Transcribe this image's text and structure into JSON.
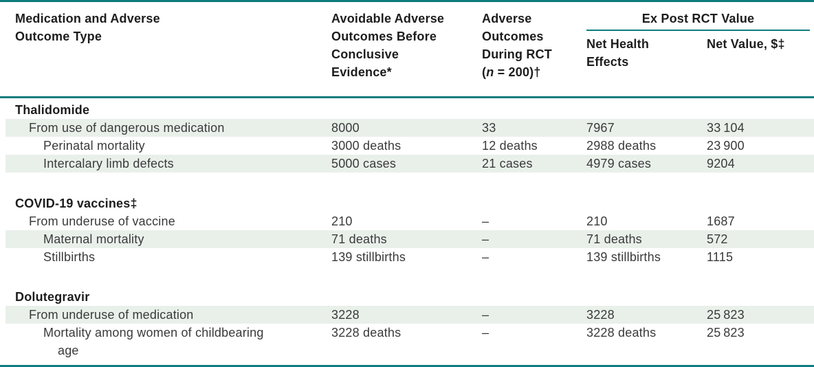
{
  "table": {
    "colors": {
      "teal": "#0e7c7c",
      "row_shade": "#e9f0ea"
    },
    "header": {
      "col_medication": "Medication and Adverse\nOutcome Type",
      "col_avoidable": "Avoidable Adverse\nOutcomes Before\nConclusive\nEvidence*",
      "col_rct_lines": "Adverse\nOutcomes\nDuring RCT",
      "col_rct_paren_open": "(",
      "col_rct_n": "n",
      "col_rct_rest": " = 200)†",
      "group_expost": "Ex Post RCT Value",
      "col_net_health": "Net Health\nEffects",
      "col_net_value": "Net Value, $‡"
    },
    "rows": [
      {
        "type": "section",
        "label": "Thalidomide",
        "indent": 0,
        "shaded": false,
        "values": [
          "",
          "",
          "",
          ""
        ]
      },
      {
        "type": "data",
        "label": "From use of dangerous medication",
        "indent": 1,
        "shaded": true,
        "values": [
          "8000",
          "33",
          "7967",
          "33 104"
        ]
      },
      {
        "type": "data",
        "label": "Perinatal mortality",
        "indent": 2,
        "shaded": false,
        "values": [
          "3000 deaths",
          "12 deaths",
          "2988 deaths",
          "23 900"
        ]
      },
      {
        "type": "data",
        "label": "Intercalary limb defects",
        "indent": 2,
        "shaded": true,
        "values": [
          "5000 cases",
          "21 cases",
          "4979 cases",
          "9204"
        ]
      },
      {
        "type": "spacer"
      },
      {
        "type": "section",
        "label": "COVID-19 vaccines‡",
        "indent": 0,
        "shaded": false,
        "values": [
          "",
          "",
          "",
          ""
        ]
      },
      {
        "type": "data",
        "label": "From underuse of vaccine",
        "indent": 1,
        "shaded": false,
        "values": [
          "210",
          "–",
          "210",
          "1687"
        ]
      },
      {
        "type": "data",
        "label": "Maternal mortality",
        "indent": 2,
        "shaded": true,
        "values": [
          "71 deaths",
          "–",
          "71 deaths",
          "572"
        ]
      },
      {
        "type": "data",
        "label": "Stillbirths",
        "indent": 2,
        "shaded": false,
        "values": [
          "139 stillbirths",
          "–",
          "139 stillbirths",
          "1115"
        ]
      },
      {
        "type": "spacer"
      },
      {
        "type": "section",
        "label": "Dolutegravir",
        "indent": 0,
        "shaded": false,
        "values": [
          "",
          "",
          "",
          ""
        ]
      },
      {
        "type": "data",
        "label": "From underuse of medication",
        "indent": 1,
        "shaded": true,
        "values": [
          "3228",
          "–",
          "3228",
          "25 823"
        ]
      },
      {
        "type": "data",
        "label": "Mortality among women of childbearing\nage",
        "indent": 2,
        "shaded": false,
        "wrap": true,
        "values": [
          "3228 deaths",
          "–",
          "3228 deaths",
          "25 823"
        ]
      }
    ]
  }
}
